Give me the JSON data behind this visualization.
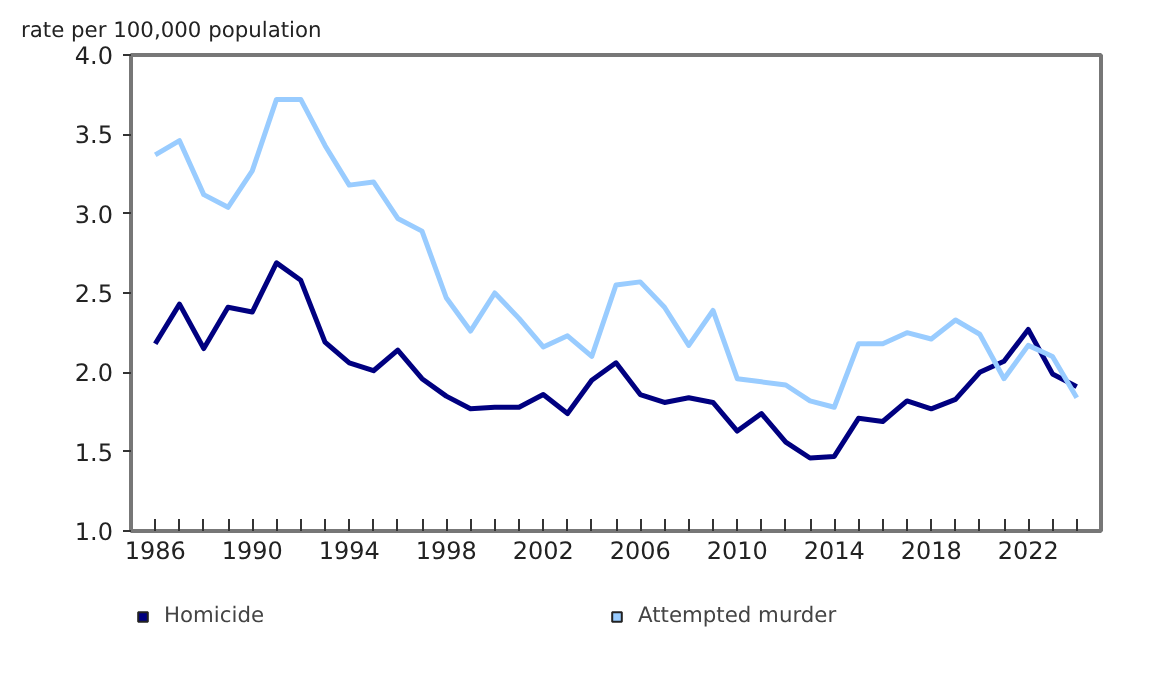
{
  "chart_data": {
    "type": "line",
    "ylabel": "rate per 100,000 population",
    "x": [
      1986,
      1987,
      1988,
      1989,
      1990,
      1991,
      1992,
      1993,
      1994,
      1995,
      1996,
      1997,
      1998,
      1999,
      2000,
      2001,
      2002,
      2003,
      2004,
      2005,
      2006,
      2007,
      2008,
      2009,
      2010,
      2011,
      2012,
      2013,
      2014,
      2015,
      2016,
      2017,
      2018,
      2019,
      2020,
      2021,
      2022,
      2023,
      2024
    ],
    "series": [
      {
        "name": "Homicide",
        "color": "#000080",
        "values": [
          2.18,
          2.43,
          2.15,
          2.41,
          2.38,
          2.69,
          2.58,
          2.19,
          2.06,
          2.01,
          2.14,
          1.96,
          1.85,
          1.77,
          1.78,
          1.78,
          1.86,
          1.74,
          1.95,
          2.06,
          1.86,
          1.81,
          1.84,
          1.81,
          1.63,
          1.74,
          1.56,
          1.46,
          1.47,
          1.71,
          1.69,
          1.82,
          1.77,
          1.83,
          2.0,
          2.07,
          2.27,
          1.99,
          1.91
        ]
      },
      {
        "name": "Attempted murder",
        "color": "#99ccff",
        "values": [
          3.37,
          3.46,
          3.12,
          3.04,
          3.27,
          3.72,
          3.72,
          3.43,
          3.18,
          3.2,
          2.97,
          2.89,
          2.47,
          2.26,
          2.5,
          2.34,
          2.16,
          2.23,
          2.1,
          2.55,
          2.57,
          2.41,
          2.17,
          2.39,
          1.96,
          1.94,
          1.92,
          1.82,
          1.78,
          2.18,
          2.18,
          2.25,
          2.21,
          2.33,
          2.24,
          1.96,
          2.17,
          2.1,
          1.84
        ]
      }
    ],
    "xlim": [
      1985,
      2025
    ],
    "xticks": [
      1986,
      {
        "value": 1987,
        "label": null
      },
      {
        "value": 1988,
        "label": null
      },
      {
        "value": 1989,
        "label": null
      },
      1990,
      {
        "value": 1991,
        "label": null
      },
      {
        "value": 1992,
        "label": null
      },
      {
        "value": 1993,
        "label": null
      },
      1994,
      {
        "value": 1995,
        "label": null
      },
      {
        "value": 1996,
        "label": null
      },
      {
        "value": 1997,
        "label": null
      },
      1998,
      {
        "value": 1999,
        "label": null
      },
      {
        "value": 2000,
        "label": null
      },
      {
        "value": 2001,
        "label": null
      },
      2002,
      {
        "value": 2003,
        "label": null
      },
      {
        "value": 2004,
        "label": null
      },
      {
        "value": 2005,
        "label": null
      },
      2006,
      {
        "value": 2007,
        "label": null
      },
      {
        "value": 2008,
        "label": null
      },
      {
        "value": 2009,
        "label": null
      },
      2010,
      {
        "value": 2011,
        "label": null
      },
      {
        "value": 2012,
        "label": null
      },
      {
        "value": 2013,
        "label": null
      },
      2014,
      {
        "value": 2015,
        "label": null
      },
      {
        "value": 2016,
        "label": null
      },
      {
        "value": 2017,
        "label": null
      },
      2018,
      {
        "value": 2019,
        "label": null
      },
      {
        "value": 2020,
        "label": null
      },
      {
        "value": 2021,
        "label": null
      },
      2022,
      {
        "value": 2023,
        "label": null
      },
      {
        "value": 2024,
        "label": null
      }
    ],
    "ylim": [
      1.0,
      4.0
    ],
    "yticks": [
      {
        "value": 1.0,
        "label": "1.0"
      },
      {
        "value": 1.5,
        "label": "1.5"
      },
      {
        "value": 2.0,
        "label": "2.0"
      },
      {
        "value": 2.5,
        "label": "2.5"
      },
      {
        "value": 3.0,
        "label": "3.0"
      },
      {
        "value": 3.5,
        "label": "3.5"
      },
      {
        "value": 4.0,
        "label": "4.0"
      }
    ],
    "grid": false,
    "legend": "bottom",
    "marker": "none",
    "line_style": "solid"
  }
}
